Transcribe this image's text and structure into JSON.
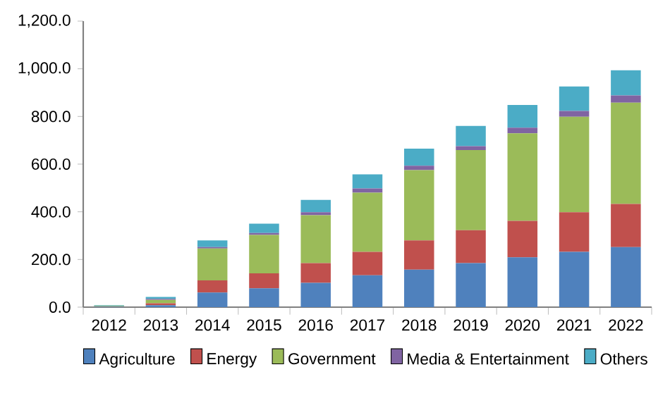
{
  "chart_data": {
    "type": "bar",
    "stacked": true,
    "legend": "bottom",
    "categories": [
      "2012",
      "2013",
      "2014",
      "2015",
      "2016",
      "2017",
      "2018",
      "2019",
      "2020",
      "2021",
      "2022"
    ],
    "ylim": [
      0,
      1200
    ],
    "yticks": [
      {
        "value": 0,
        "label": "0.0"
      },
      {
        "value": 200,
        "label": "200.0"
      },
      {
        "value": 400,
        "label": "400.0"
      },
      {
        "value": 600,
        "label": "600.0"
      },
      {
        "value": 800,
        "label": "800.0"
      },
      {
        "value": 1000,
        "label": "1,000.0"
      },
      {
        "value": 1200,
        "label": "1,200.0"
      }
    ],
    "series": [
      {
        "name": "Agriculture",
        "color": "#4f81bd",
        "values": [
          2,
          8,
          61,
          79,
          102,
          134,
          157,
          185,
          209,
          232,
          252
        ]
      },
      {
        "name": "Energy",
        "color": "#c0504d",
        "values": [
          1,
          8,
          51,
          63,
          83,
          98,
          123,
          138,
          153,
          166,
          181
        ]
      },
      {
        "name": "Government",
        "color": "#9bbb59",
        "values": [
          2,
          14,
          134,
          161,
          201,
          248,
          295,
          336,
          367,
          401,
          425
        ]
      },
      {
        "name": "Media & Entertainment",
        "color": "#8064a2",
        "values": [
          1,
          5,
          6,
          8,
          12,
          18,
          18,
          16,
          24,
          24,
          30
        ]
      },
      {
        "name": "Others",
        "color": "#4bacc6",
        "values": [
          2,
          8,
          28,
          39,
          52,
          59,
          72,
          85,
          95,
          103,
          106
        ]
      }
    ]
  }
}
